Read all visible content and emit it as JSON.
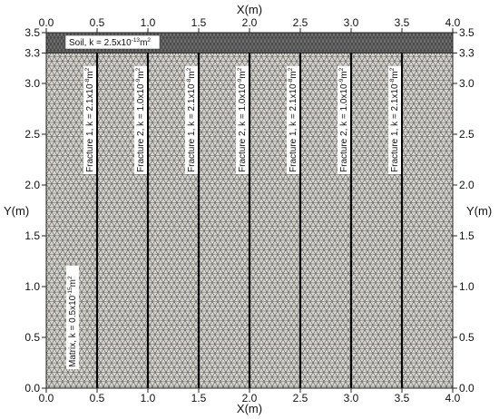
{
  "axes": {
    "x_title": "X(m)",
    "y_title": "Y(m)",
    "x_ticks": [
      "0.0",
      "0.5",
      "1.0",
      "1.5",
      "2.0",
      "2.5",
      "3.0",
      "3.5",
      "4.0"
    ],
    "y_ticks": [
      "0.0",
      "0.5",
      "1.0",
      "1.5",
      "2.0",
      "2.5",
      "3.0",
      "3.3",
      "3.5"
    ]
  },
  "domain": {
    "x_range": [
      0,
      4.0
    ],
    "y_range": [
      0,
      3.5
    ],
    "soil_bottom_y": 3.3
  },
  "soil_label": {
    "main": "Soil, k = 2.5x10",
    "exp": "-13",
    "tail": "m",
    "sq": "2"
  },
  "matrix_label": {
    "main": "Matrix, k = 0.5x10",
    "exp": "-15",
    "tail": "m",
    "sq": "2"
  },
  "fractures": [
    {
      "x": 0.5
    },
    {
      "x": 1.0
    },
    {
      "x": 1.5
    },
    {
      "x": 2.0
    },
    {
      "x": 2.5
    },
    {
      "x": 3.0
    },
    {
      "x": 3.5
    }
  ],
  "fracture_labels": [
    {
      "x": 0.5,
      "main": "Fracture 1, k = 2.1x10",
      "exp": "-8",
      "tail": "m",
      "sq": "2"
    },
    {
      "x": 1.0,
      "main": "Fracture 2, k = 1.0x10",
      "exp": "-9",
      "tail": "m",
      "sq": "2"
    },
    {
      "x": 1.5,
      "main": "Fracture 1, k = 2.1x10",
      "exp": "-8",
      "tail": "m",
      "sq": "2"
    },
    {
      "x": 2.0,
      "main": "Fracture 2, k = 1.0x10",
      "exp": "-9",
      "tail": "m",
      "sq": "2"
    },
    {
      "x": 2.5,
      "main": "Fracture 1, k = 2.1x10",
      "exp": "-8",
      "tail": "m",
      "sq": "2"
    },
    {
      "x": 3.0,
      "main": "Fracture 2, k = 1.0x10",
      "exp": "-9",
      "tail": "m",
      "sq": "2"
    },
    {
      "x": 3.5,
      "main": "Fracture 1, k = 2.1x10",
      "exp": "-8",
      "tail": "m",
      "sq": "2"
    }
  ],
  "colors": {
    "matrix_fill": "#d7d5ce",
    "mesh_line": "#5b5b5b",
    "soil_fill": "#6f6f6f",
    "fracture_line": "#000000",
    "label_box": "#ffffff"
  }
}
